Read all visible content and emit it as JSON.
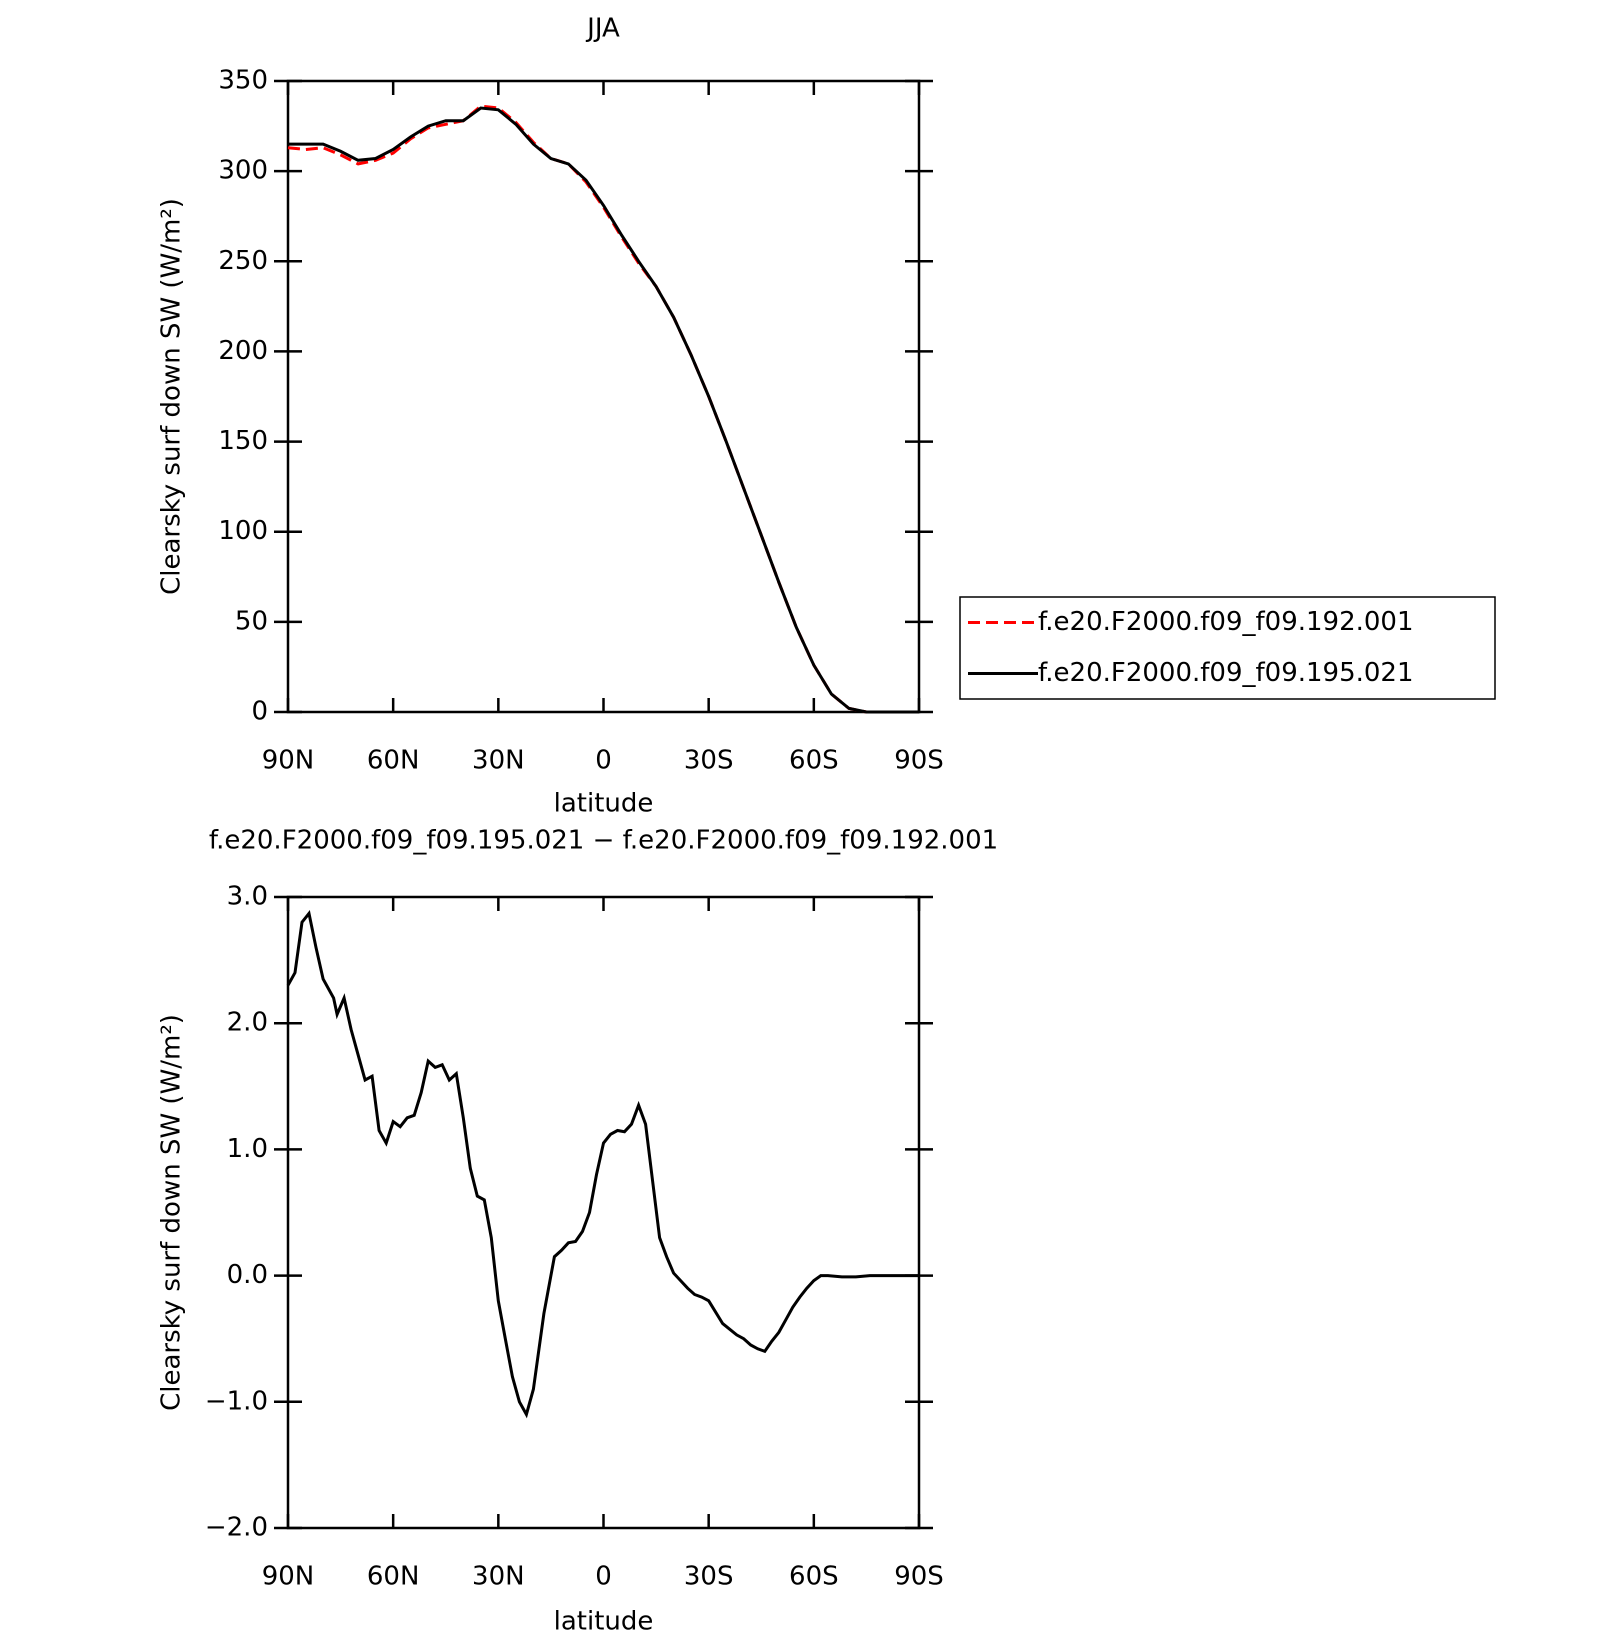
{
  "chart_data": [
    {
      "type": "line",
      "title": "JJA",
      "x_label": "latitude",
      "y_label": "Clearsky surf down SW (W/m²)",
      "x": [
        90,
        85,
        80,
        75,
        70,
        65,
        60,
        55,
        50,
        45,
        40,
        35,
        30,
        25,
        20,
        15,
        10,
        5,
        0,
        -5,
        -10,
        -15,
        -20,
        -25,
        -30,
        -35,
        -40,
        -45,
        -50,
        -55,
        -60,
        -65,
        -70,
        -75,
        -80,
        -85,
        -90
      ],
      "series": [
        {
          "name": "f.e20.F2000.f09_f09.192.001",
          "color": "#ff0000",
          "dashed": true,
          "values": [
            313,
            312,
            313,
            309,
            304,
            306,
            310,
            318,
            324,
            326,
            328,
            336,
            335,
            327,
            316,
            307,
            304,
            294,
            280,
            264,
            249,
            236,
            219,
            198,
            175,
            150,
            124,
            98,
            72,
            47,
            26,
            10,
            2,
            0,
            0,
            0,
            0
          ]
        },
        {
          "name": "f.e20.F2000.f09_f09.195.021",
          "color": "#000000",
          "dashed": false,
          "values": [
            315,
            315,
            315,
            311,
            306,
            307,
            312,
            319,
            325,
            328,
            328,
            335,
            334,
            326,
            315,
            307,
            304,
            295,
            281,
            265,
            250,
            236,
            219,
            198,
            175,
            150,
            124,
            98,
            72,
            47,
            26,
            10,
            2,
            0,
            0,
            0,
            0
          ]
        }
      ],
      "xlim": [
        90,
        -90
      ],
      "xticks": [
        {
          "value": 90,
          "label": "90N"
        },
        {
          "value": 60,
          "label": "60N"
        },
        {
          "value": 30,
          "label": "30N"
        },
        0,
        {
          "value": -30,
          "label": "30S"
        },
        {
          "value": -60,
          "label": "60S"
        },
        {
          "value": -90,
          "label": "90S"
        }
      ],
      "ylim": [
        0,
        350
      ],
      "yticks": [
        0,
        50,
        100,
        150,
        200,
        250,
        300,
        350
      ],
      "legend": "right"
    },
    {
      "type": "line",
      "title": "f.e20.F2000.f09_f09.195.021 − f.e20.F2000.f09_f09.192.001",
      "x_label": "latitude",
      "y_label": "Clearsky surf down SW (W/m²)",
      "x": [
        90,
        88,
        86,
        84,
        82,
        80,
        77,
        76,
        74,
        72,
        70,
        68,
        66,
        64,
        62,
        60,
        58,
        56,
        54,
        52,
        50,
        48,
        46,
        44,
        42,
        40,
        38,
        36,
        34,
        32,
        30,
        28,
        26,
        24,
        22,
        20,
        17,
        14,
        12,
        10,
        8,
        6,
        4,
        2,
        0,
        -2,
        -4,
        -6,
        -8,
        -10,
        -12,
        -14,
        -16,
        -18,
        -20,
        -22,
        -24,
        -26,
        -28,
        -30,
        -34,
        -38,
        -40,
        -42,
        -44,
        -46,
        -48,
        -50,
        -52,
        -54,
        -56,
        -58,
        -60,
        -62,
        -64,
        -68,
        -72,
        -76,
        -90
      ],
      "series": [
        {
          "name": "difference",
          "color": "#000000",
          "dashed": false,
          "values": [
            2.3,
            2.4,
            2.8,
            2.87,
            2.6,
            2.35,
            2.2,
            2.07,
            2.2,
            1.95,
            1.75,
            1.55,
            1.58,
            1.15,
            1.05,
            1.22,
            1.18,
            1.25,
            1.27,
            1.45,
            1.7,
            1.65,
            1.67,
            1.55,
            1.6,
            1.25,
            0.85,
            0.63,
            0.6,
            0.3,
            -0.2,
            -0.5,
            -0.8,
            -1.0,
            -1.1,
            -0.9,
            -0.3,
            0.15,
            0.2,
            0.26,
            0.27,
            0.35,
            0.5,
            0.8,
            1.05,
            1.12,
            1.15,
            1.14,
            1.2,
            1.35,
            1.2,
            0.75,
            0.3,
            0.15,
            0.02,
            -0.04,
            -0.1,
            -0.15,
            -0.17,
            -0.2,
            -0.38,
            -0.47,
            -0.5,
            -0.55,
            -0.58,
            -0.6,
            -0.52,
            -0.45,
            -0.35,
            -0.25,
            -0.17,
            -0.1,
            -0.04,
            0.0,
            0.0,
            -0.01,
            -0.01,
            0.0,
            0.0
          ]
        }
      ],
      "xlim": [
        90,
        -90
      ],
      "xticks": [
        {
          "value": 90,
          "label": "90N"
        },
        {
          "value": 60,
          "label": "60N"
        },
        {
          "value": 30,
          "label": "30N"
        },
        0,
        {
          "value": -30,
          "label": "30S"
        },
        {
          "value": -60,
          "label": "60S"
        },
        {
          "value": -90,
          "label": "90S"
        }
      ],
      "ylim": [
        -2,
        3
      ],
      "yticks": [
        {
          "value": -2,
          "label": "−2.0"
        },
        {
          "value": -1,
          "label": "−1.0"
        },
        {
          "value": 0,
          "label": "0.0"
        },
        {
          "value": 1,
          "label": "1.0"
        },
        {
          "value": 2,
          "label": "2.0"
        },
        {
          "value": 3,
          "label": "3.0"
        }
      ]
    }
  ]
}
